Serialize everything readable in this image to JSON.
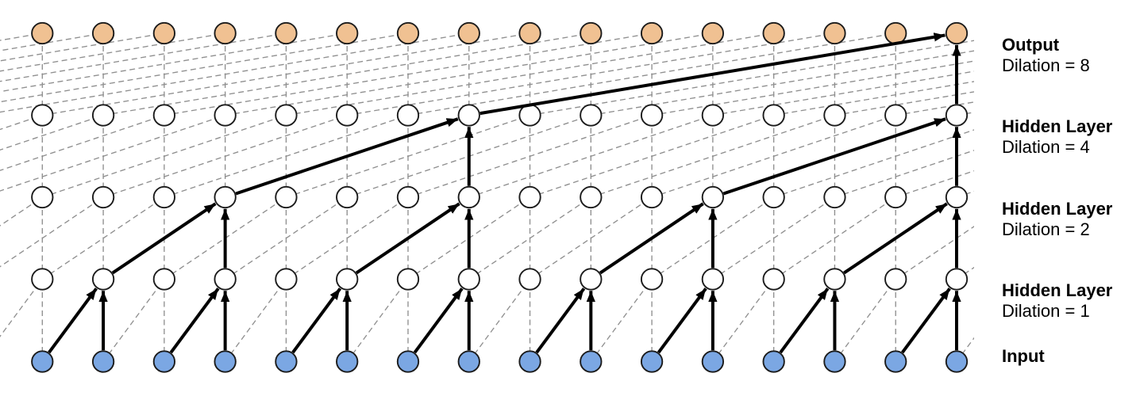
{
  "diagram": {
    "columns": 16,
    "connectivity_rule": "each node t connects to nodes t and t - dilation in the layer below; highlighted solid arrows form the receptive-field tree of the last output node",
    "colors": {
      "background": "#ffffff",
      "output_node_fill": "#f0c192",
      "hidden_node_fill": "#ffffff",
      "input_node_fill": "#7ba7e3",
      "node_stroke": "#1b1b1b",
      "solid_edge": "#000000",
      "dashed_edge": "#8f8f8f",
      "label_text": "#000000"
    },
    "rows": [
      {
        "name": "output",
        "title": "Output",
        "subtitle": "Dilation = 8",
        "dilation": 8,
        "fill_key": "output_node_fill"
      },
      {
        "name": "hidden-4",
        "title": "Hidden Layer",
        "subtitle": "Dilation = 4",
        "dilation": 4,
        "fill_key": "hidden_node_fill"
      },
      {
        "name": "hidden-2",
        "title": "Hidden Layer",
        "subtitle": "Dilation = 2",
        "dilation": 2,
        "fill_key": "hidden_node_fill"
      },
      {
        "name": "hidden-1",
        "title": "Hidden Layer",
        "subtitle": "Dilation = 1",
        "dilation": 1,
        "fill_key": "hidden_node_fill"
      },
      {
        "name": "input",
        "title": "Input",
        "subtitle": "",
        "dilation": null,
        "fill_key": "input_node_fill"
      }
    ],
    "solid_edges": [
      {
        "into": "hidden-1",
        "from": 0,
        "to": 1
      },
      {
        "into": "hidden-1",
        "from": 1,
        "to": 1
      },
      {
        "into": "hidden-1",
        "from": 2,
        "to": 3
      },
      {
        "into": "hidden-1",
        "from": 3,
        "to": 3
      },
      {
        "into": "hidden-1",
        "from": 4,
        "to": 5
      },
      {
        "into": "hidden-1",
        "from": 5,
        "to": 5
      },
      {
        "into": "hidden-1",
        "from": 6,
        "to": 7
      },
      {
        "into": "hidden-1",
        "from": 7,
        "to": 7
      },
      {
        "into": "hidden-1",
        "from": 8,
        "to": 9
      },
      {
        "into": "hidden-1",
        "from": 9,
        "to": 9
      },
      {
        "into": "hidden-1",
        "from": 10,
        "to": 11
      },
      {
        "into": "hidden-1",
        "from": 11,
        "to": 11
      },
      {
        "into": "hidden-1",
        "from": 12,
        "to": 13
      },
      {
        "into": "hidden-1",
        "from": 13,
        "to": 13
      },
      {
        "into": "hidden-1",
        "from": 14,
        "to": 15
      },
      {
        "into": "hidden-1",
        "from": 15,
        "to": 15
      },
      {
        "into": "hidden-2",
        "from": 1,
        "to": 3
      },
      {
        "into": "hidden-2",
        "from": 3,
        "to": 3
      },
      {
        "into": "hidden-2",
        "from": 5,
        "to": 7
      },
      {
        "into": "hidden-2",
        "from": 7,
        "to": 7
      },
      {
        "into": "hidden-2",
        "from": 9,
        "to": 11
      },
      {
        "into": "hidden-2",
        "from": 11,
        "to": 11
      },
      {
        "into": "hidden-2",
        "from": 13,
        "to": 15
      },
      {
        "into": "hidden-2",
        "from": 15,
        "to": 15
      },
      {
        "into": "hidden-4",
        "from": 3,
        "to": 7
      },
      {
        "into": "hidden-4",
        "from": 7,
        "to": 7
      },
      {
        "into": "hidden-4",
        "from": 11,
        "to": 15
      },
      {
        "into": "hidden-4",
        "from": 15,
        "to": 15
      },
      {
        "into": "output",
        "from": 7,
        "to": 15
      },
      {
        "into": "output",
        "from": 15,
        "to": 15
      }
    ]
  }
}
